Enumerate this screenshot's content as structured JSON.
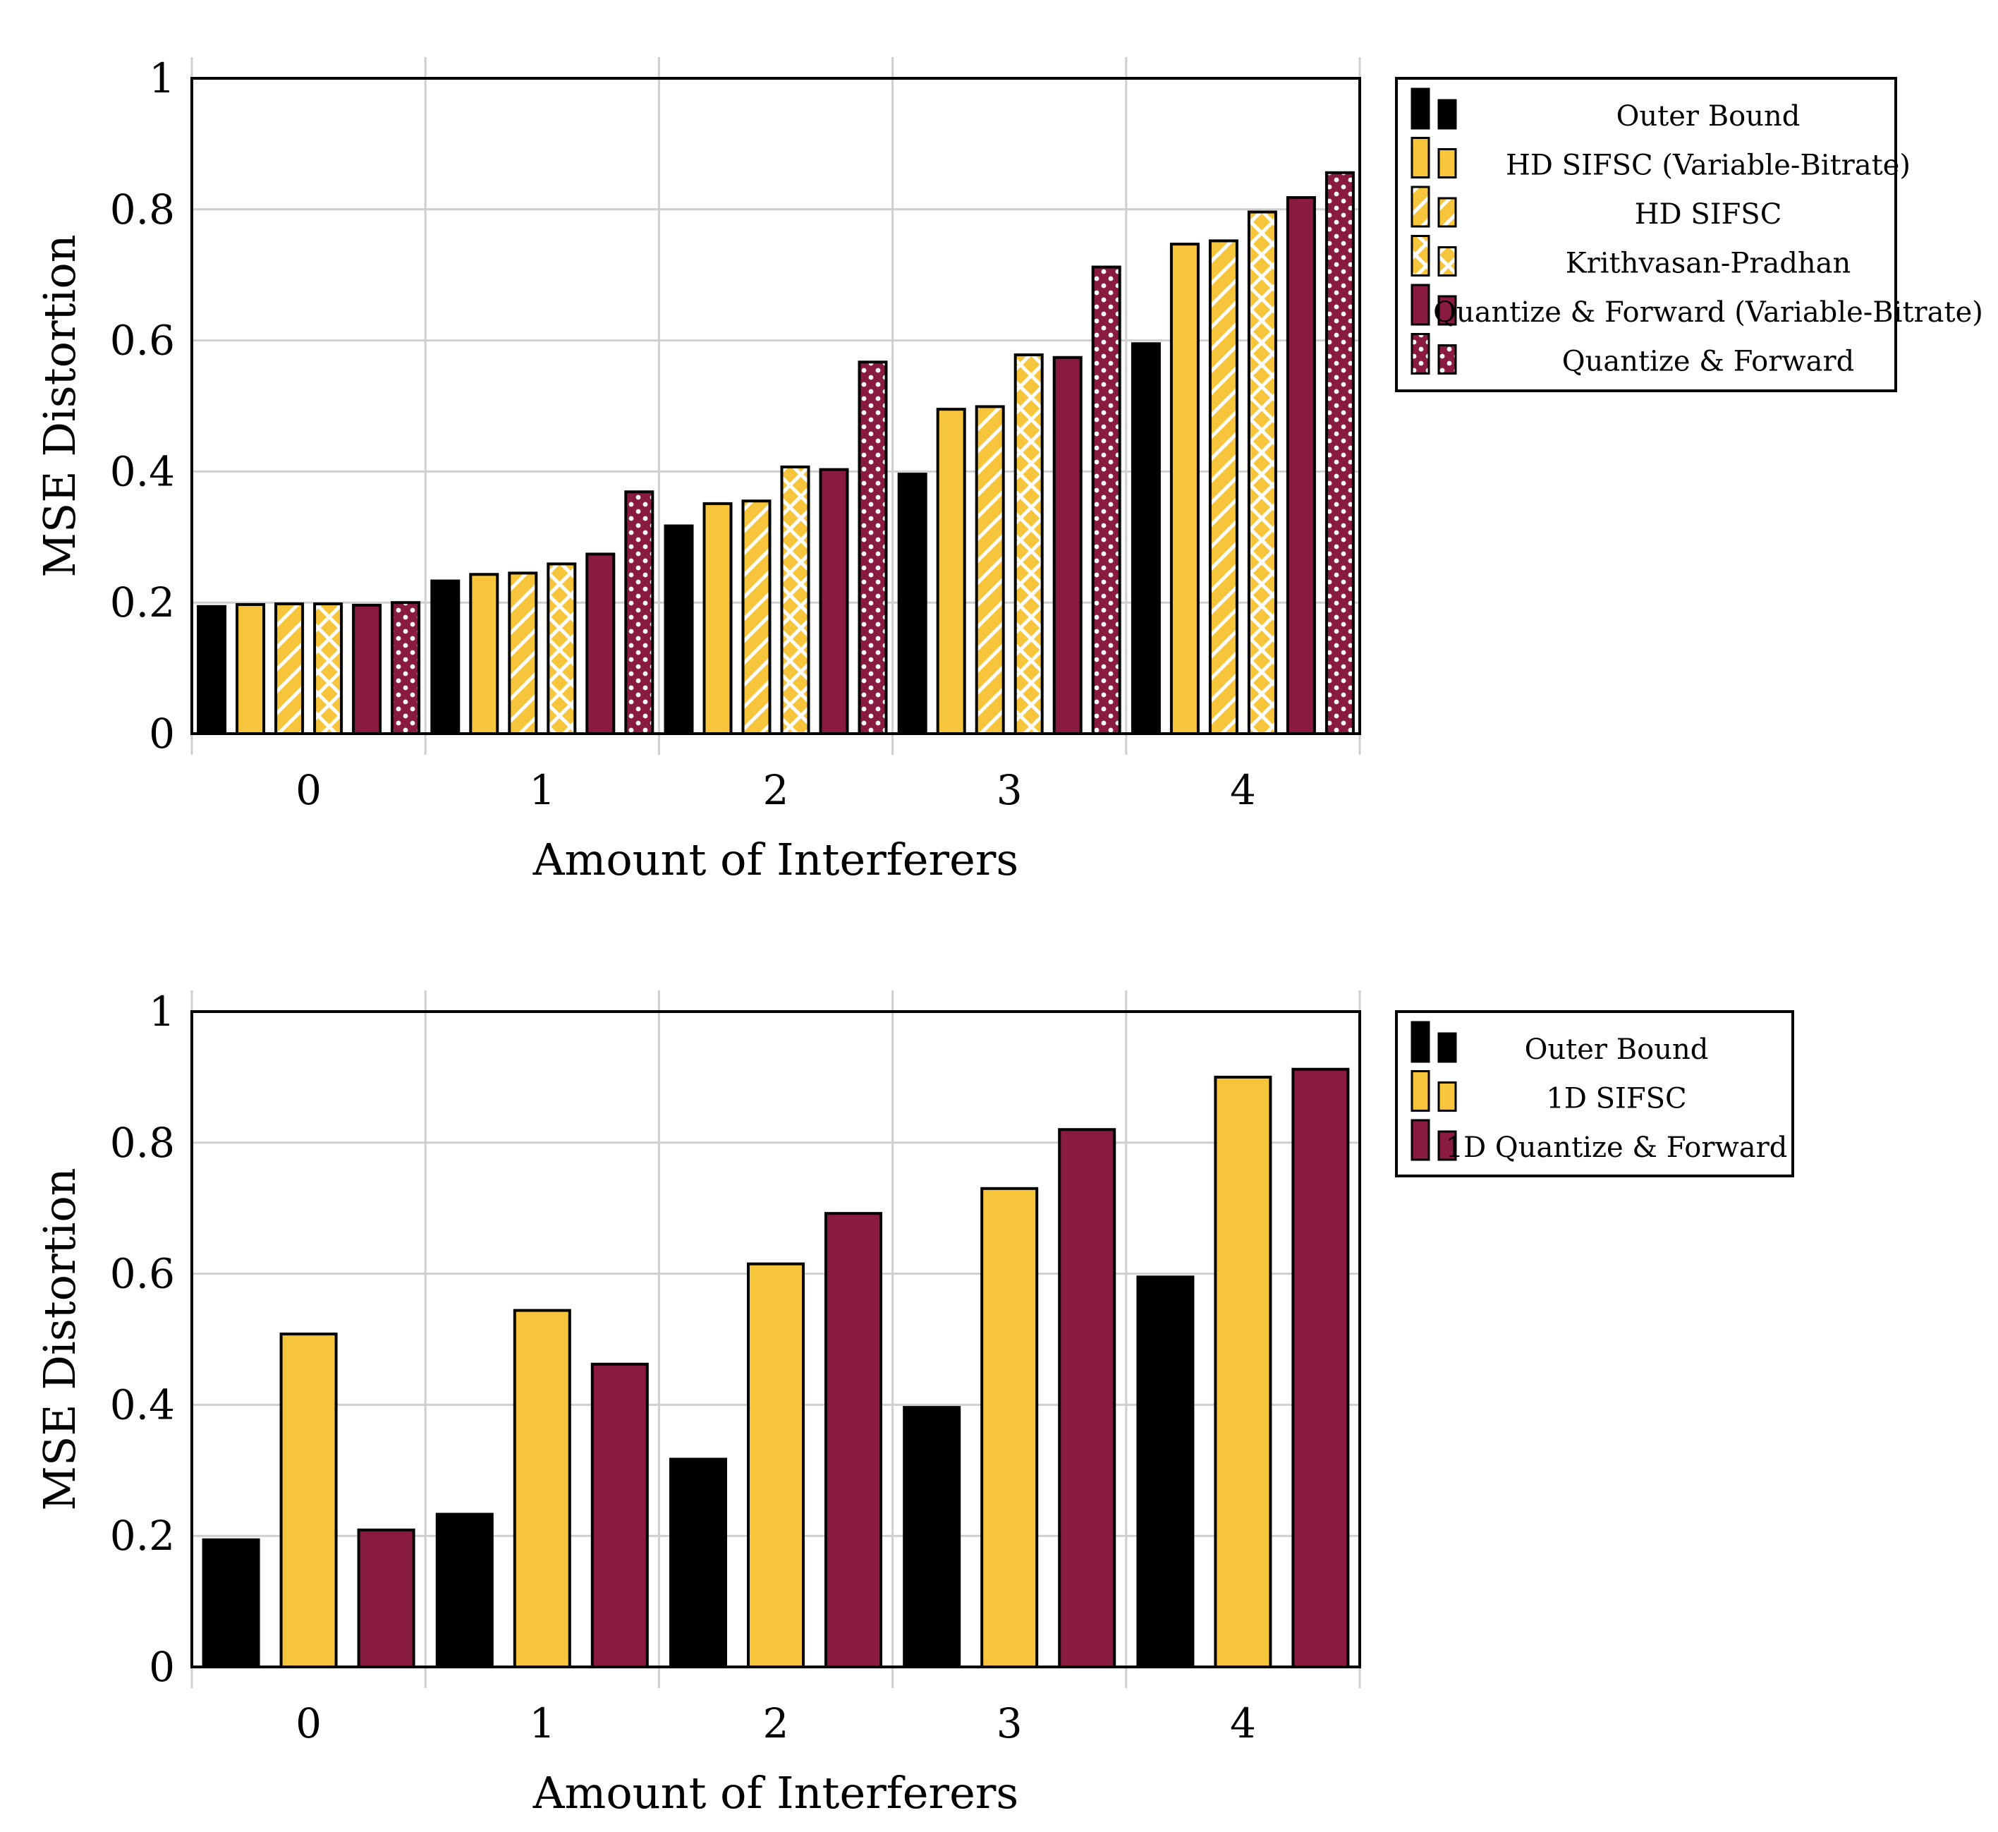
{
  "colors": {
    "outer_bound": "#000000",
    "sifsc": "#F7C53B",
    "qf": "#8A1B40",
    "grid": "#cfcfcf"
  },
  "chart_data": [
    {
      "type": "bar",
      "xlabel": "Amount of Interferers",
      "ylabel": "MSE Distortion",
      "categories": [
        "0",
        "1",
        "2",
        "3",
        "4"
      ],
      "ylim": [
        0,
        1
      ],
      "yticks": [
        "0",
        "0.2",
        "0.4",
        "0.6",
        "0.8",
        "1"
      ],
      "grid": true,
      "legend_position": "outside-right-top",
      "series": [
        {
          "name": "Outer Bound",
          "values": [
            0.194,
            0.233,
            0.317,
            0.396,
            0.595
          ],
          "color": "#000000",
          "pattern": "solid"
        },
        {
          "name": "HD SIFSC (Variable-Bitrate)",
          "values": [
            0.197,
            0.243,
            0.351,
            0.495,
            0.747
          ],
          "color": "#F7C53B",
          "pattern": "solid"
        },
        {
          "name": "HD SIFSC",
          "values": [
            0.198,
            0.245,
            0.355,
            0.499,
            0.752
          ],
          "color": "#F7C53B",
          "pattern": "diagonal-lines"
        },
        {
          "name": "Krithvasan-Pradhan",
          "values": [
            0.198,
            0.259,
            0.407,
            0.578,
            0.796
          ],
          "color": "#F7C53B",
          "pattern": "crosshatch"
        },
        {
          "name": "Quantize & Forward (Variable-Bitrate)",
          "values": [
            0.196,
            0.274,
            0.403,
            0.574,
            0.818
          ],
          "color": "#8A1B40",
          "pattern": "solid"
        },
        {
          "name": "Quantize & Forward",
          "values": [
            0.2,
            0.369,
            0.567,
            0.712,
            0.856
          ],
          "color": "#8A1B40",
          "pattern": "dots"
        }
      ]
    },
    {
      "type": "bar",
      "xlabel": "Amount of Interferers",
      "ylabel": "MSE Distortion",
      "categories": [
        "0",
        "1",
        "2",
        "3",
        "4"
      ],
      "ylim": [
        0,
        1
      ],
      "yticks": [
        "0",
        "0.2",
        "0.4",
        "0.6",
        "0.8",
        "1"
      ],
      "grid": true,
      "legend_position": "outside-right-top",
      "series": [
        {
          "name": "Outer Bound",
          "values": [
            0.194,
            0.233,
            0.317,
            0.396,
            0.595
          ],
          "color": "#000000",
          "pattern": "solid"
        },
        {
          "name": "1D SIFSC",
          "values": [
            0.508,
            0.544,
            0.615,
            0.73,
            0.9
          ],
          "color": "#F7C53B",
          "pattern": "solid"
        },
        {
          "name": "1D Quantize & Forward",
          "values": [
            0.209,
            0.462,
            0.692,
            0.82,
            0.912
          ],
          "color": "#8A1B40",
          "pattern": "solid"
        }
      ]
    }
  ]
}
